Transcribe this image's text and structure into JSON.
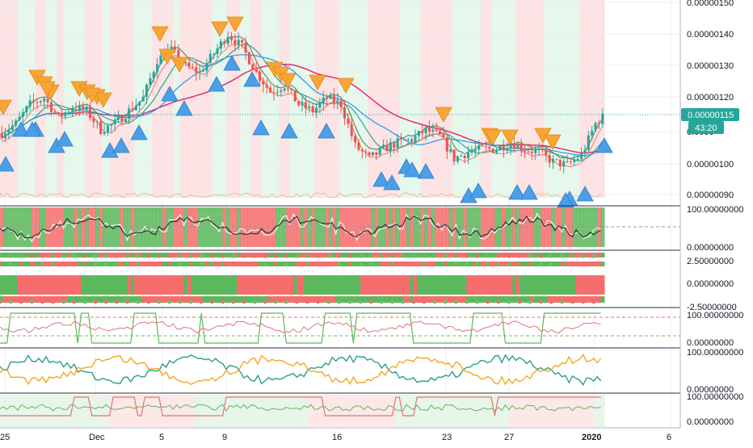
{
  "colors": {
    "up": "#26a69a",
    "down": "#ef5350",
    "bg_green": "#e6f7ec",
    "bg_red": "#fde3e3",
    "sell_marker": "#f7a534",
    "buy_marker": "#4a9fe8",
    "ma_pink": "#e91e63",
    "ma_blue": "#2196f3",
    "ma_teal": "#26a69a",
    "osc_green": "#5cb85c",
    "osc_red": "#f66d6d",
    "line_orange": "#f5a623",
    "line_teal": "#2a9d8f",
    "price_badge": "#26a69a"
  },
  "price_axis": {
    "ticks": [
      "0.00000150",
      "0.00000140",
      "0.00000130",
      "0.00000120",
      "0.00000100",
      "0.00000090"
    ],
    "partial_tick": "0.0000",
    "current_price": "0.00000115",
    "countdown": "43:20"
  },
  "panes": {
    "p1": {
      "top": "100.00000000",
      "bottom": "0.00000000"
    },
    "p2": {
      "top": "2.50000000",
      "mid": "0.00000000",
      "bottom": "-2.50000000"
    },
    "p3": {
      "top": "100.00000000",
      "bottom": "0.00000000"
    },
    "p4": {
      "top": "100.00000000",
      "bottom": "0.00000000"
    },
    "p5": {
      "top": "100.00000000",
      "bottom": "0.00000000"
    }
  },
  "time_axis": {
    "labels": [
      "25",
      "Dec",
      "5",
      "9",
      "16",
      "23",
      "27",
      "2020",
      "6"
    ]
  },
  "chart_data": {
    "type": "candlestick",
    "x_range": [
      "Nov 25 2019",
      "Jan 6 2020"
    ],
    "y_range": [
      9e-07,
      1.5e-06
    ],
    "last_price": 1.15e-06,
    "price_path": [
      [
        0,
        1.09
      ],
      [
        4,
        1.12
      ],
      [
        8,
        1.18
      ],
      [
        12,
        1.2
      ],
      [
        16,
        1.14
      ],
      [
        20,
        1.17
      ],
      [
        24,
        1.16
      ],
      [
        28,
        1.1
      ],
      [
        32,
        1.12
      ],
      [
        36,
        1.16
      ],
      [
        40,
        1.2
      ],
      [
        44,
        1.32
      ],
      [
        48,
        1.35
      ],
      [
        52,
        1.3
      ],
      [
        56,
        1.28
      ],
      [
        60,
        1.34
      ],
      [
        64,
        1.4
      ],
      [
        68,
        1.36
      ],
      [
        72,
        1.28
      ],
      [
        76,
        1.22
      ],
      [
        80,
        1.24
      ],
      [
        84,
        1.18
      ],
      [
        88,
        1.16
      ],
      [
        92,
        1.2
      ],
      [
        96,
        1.18
      ],
      [
        100,
        1.05
      ],
      [
        104,
        1.01
      ],
      [
        108,
        1.04
      ],
      [
        112,
        1.06
      ],
      [
        116,
        1.07
      ],
      [
        120,
        1.1
      ],
      [
        124,
        1.08
      ],
      [
        128,
        1.01
      ],
      [
        132,
        1.03
      ],
      [
        136,
        1.04
      ],
      [
        140,
        1.04
      ],
      [
        144,
        1.06
      ],
      [
        148,
        1.04
      ],
      [
        152,
        1.03
      ],
      [
        156,
        1.0
      ],
      [
        160,
        0.99
      ],
      [
        164,
        1.02
      ],
      [
        168,
        1.12
      ],
      [
        171,
        1.15
      ]
    ],
    "sell_signals": 26,
    "buy_signals": 30
  }
}
